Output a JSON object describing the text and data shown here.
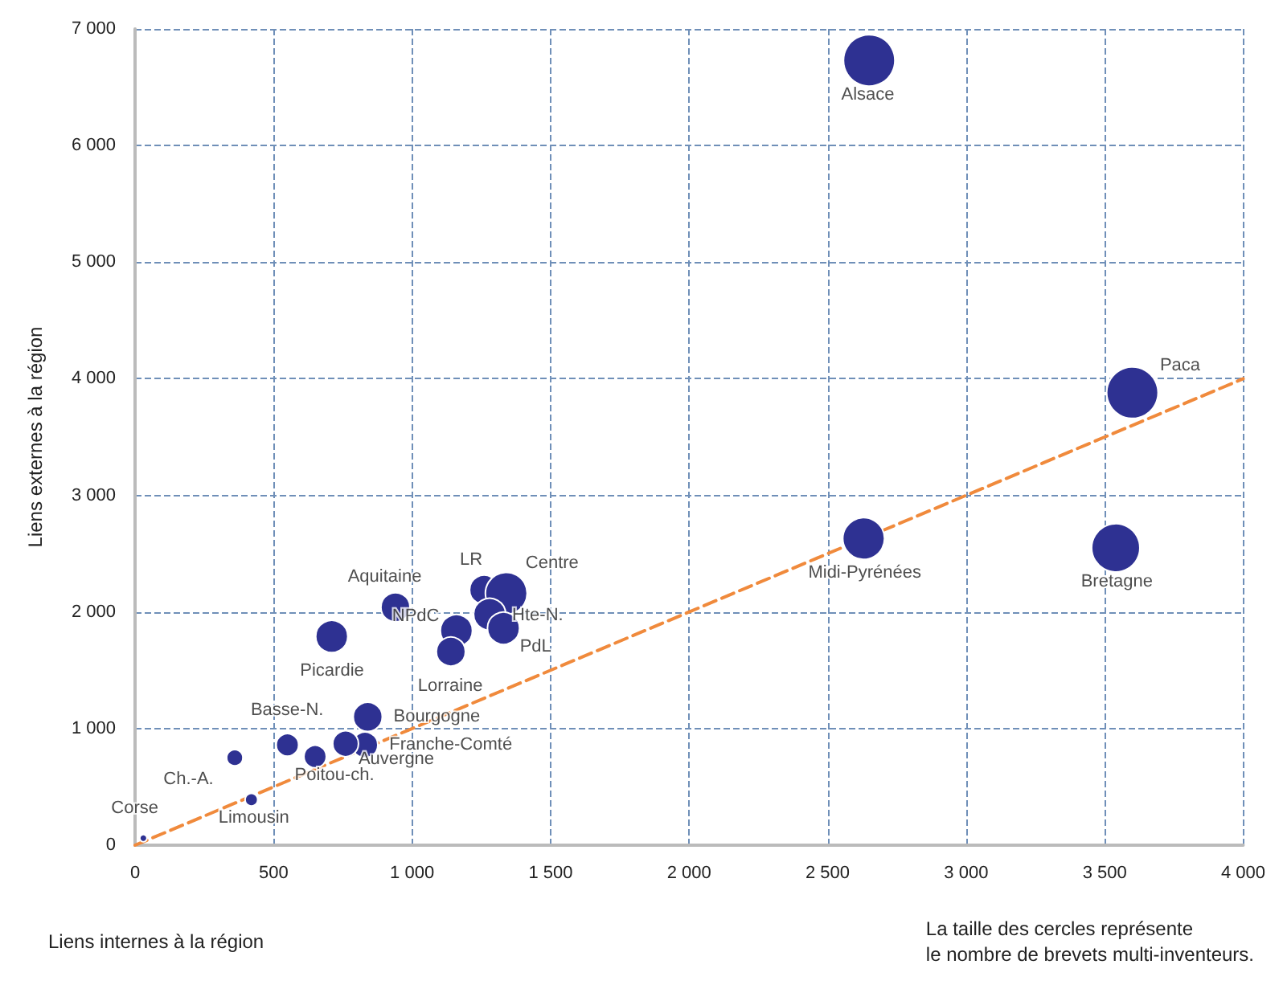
{
  "chart_data": {
    "type": "bubble",
    "xlabel": "Liens internes à la région",
    "ylabel": "Liens externes à la région",
    "xlim": [
      0,
      4000
    ],
    "ylim": [
      0,
      7000
    ],
    "xticks": [
      0,
      500,
      {
        "value": 1000,
        "label": "1 000"
      },
      {
        "value": 1500,
        "label": "1 500"
      },
      {
        "value": 2000,
        "label": "2 000"
      },
      {
        "value": 2500,
        "label": "2 500"
      },
      {
        "value": 3000,
        "label": "3 000"
      },
      {
        "value": 3500,
        "label": "3 500"
      },
      {
        "value": 4000,
        "label": "4 000"
      }
    ],
    "yticks": [
      0,
      {
        "value": 1000,
        "label": "1 000"
      },
      {
        "value": 2000,
        "label": "2 000"
      },
      {
        "value": 3000,
        "label": "3 000"
      },
      {
        "value": 4000,
        "label": "4 000"
      },
      {
        "value": 5000,
        "label": "5 000"
      },
      {
        "value": 6000,
        "label": "6 000"
      },
      {
        "value": 7000,
        "label": "7 000"
      }
    ],
    "grid": true,
    "marker": "circle",
    "series": [
      {
        "color": "#2e3192",
        "x": [
          2650,
          3600,
          3540,
          2630,
          940,
          710,
          1260,
          1340,
          1280,
          1160,
          1330,
          1140,
          840,
          830,
          760,
          550,
          650,
          360,
          420,
          30
        ],
        "values": [
          6730,
          3880,
          2550,
          2630,
          2040,
          1790,
          2190,
          2160,
          1980,
          1840,
          1860,
          1660,
          1100,
          860,
          870,
          860,
          760,
          750,
          390,
          60
        ],
        "sizes": [
          1,
          1,
          0.88,
          0.66,
          0.32,
          0.39,
          0.32,
          0.66,
          0.39,
          0.39,
          0.39,
          0.32,
          0.32,
          0.25,
          0.25,
          0.19,
          0.19,
          0.1,
          0.06,
          0.02
        ]
      },
      {
        "type": "line",
        "color": "#f08a3c",
        "line_style": "dashed",
        "marker": "none",
        "x": [
          0,
          4000
        ],
        "values": [
          0,
          4000
        ]
      }
    ],
    "annotations": [
      {
        "text": "Alsace",
        "x": 2645,
        "y": 6730
      },
      {
        "text": "Paca",
        "x": 3595,
        "y": 3885
      },
      {
        "text": "Bretagne",
        "x": 3544,
        "y": 2555
      },
      {
        "text": "Midi-Pyrénées",
        "x": 2634,
        "y": 2635
      },
      {
        "text": "Aquitaine",
        "x": 942,
        "y": 2044
      },
      {
        "text": "Picardie",
        "x": 711,
        "y": 1792
      },
      {
        "text": "LR",
        "x": 1265,
        "y": 2190
      },
      {
        "text": "Centre",
        "x": 1340,
        "y": 2164
      },
      {
        "text": "Hte-N.",
        "x": 1280,
        "y": 1978
      },
      {
        "text": "NPdC",
        "x": 1160,
        "y": 1845
      },
      {
        "text": "PdL",
        "x": 1331,
        "y": 1858
      },
      {
        "text": "Lorraine",
        "x": 1138,
        "y": 1658
      },
      {
        "text": "Bourgogne",
        "x": 840,
        "y": 1104
      },
      {
        "text": "Franche-Comté",
        "x": 825,
        "y": 860
      },
      {
        "text": "Auvergne",
        "x": 760,
        "y": 869
      },
      {
        "text": "Basse-N.",
        "x": 549,
        "y": 860
      },
      {
        "text": "Poitou-ch.",
        "x": 646,
        "y": 758
      },
      {
        "text": "Ch.-A.",
        "x": 358,
        "y": 749
      },
      {
        "text": "Limousin",
        "x": 417,
        "y": 390
      },
      {
        "text": "Corse",
        "x": 30,
        "y": 60
      },
      "La taille des cercles représente\nle nombre de brevets multi-inventeurs."
    ]
  }
}
